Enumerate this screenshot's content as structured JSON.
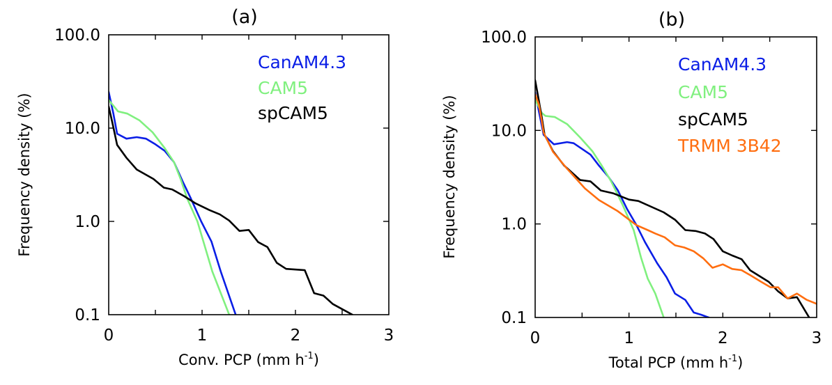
{
  "chart_data": [
    {
      "type": "line",
      "id": "a",
      "title": "(a)",
      "xlabel": "Conv. PCP (mm h",
      "xlabel_sup": "-1",
      "xlabel_end": ")",
      "ylabel": "Frequency  density  (%)",
      "xlim": [
        0,
        3
      ],
      "ylim": [
        0.1,
        100
      ],
      "yscale": "log",
      "xticks": [
        0,
        1,
        2,
        3
      ],
      "xtick_labels": [
        "0",
        "1",
        "2",
        "3"
      ],
      "xminor": [
        0.5,
        1.5,
        2.5
      ],
      "yticks": [
        0.1,
        1,
        10,
        100
      ],
      "ytick_labels": [
        "0.1",
        "1.0",
        "10.0",
        "100.0"
      ],
      "grid": false,
      "legend_position": "top-right",
      "series": [
        {
          "name": "CanAM4.3",
          "color": "#0a1ee6",
          "x": [
            0,
            0.05,
            0.09,
            0.19,
            0.3,
            0.4,
            0.5,
            0.6,
            0.7,
            0.79,
            0.88,
            0.99,
            1.1,
            1.2,
            1.36
          ],
          "y": [
            24.4,
            14.3,
            8.7,
            7.7,
            8.0,
            7.7,
            6.7,
            5.7,
            4.3,
            2.7,
            1.76,
            1.0,
            0.61,
            0.29,
            0.1
          ]
        },
        {
          "name": "CAM5",
          "color": "#80f07f",
          "x": [
            0,
            0.1,
            0.2,
            0.33,
            0.47,
            0.6,
            0.7,
            0.77,
            0.84,
            0.95,
            1.11,
            1.29
          ],
          "y": [
            20,
            15.1,
            14.3,
            12.1,
            9.0,
            6.1,
            4.3,
            2.85,
            1.76,
            1.0,
            0.29,
            0.1
          ]
        },
        {
          "name": "spCAM5",
          "color": "#000000",
          "x": [
            0,
            0.04,
            0.09,
            0.19,
            0.3,
            0.48,
            0.59,
            0.68,
            0.81,
            0.93,
            1.08,
            1.19,
            1.29,
            1.4,
            1.5,
            1.6,
            1.7,
            1.8,
            1.9,
            2.1,
            2.2,
            2.3,
            2.4,
            2.61
          ],
          "y": [
            17,
            11.3,
            6.6,
            4.8,
            3.6,
            2.85,
            2.3,
            2.2,
            1.86,
            1.56,
            1.32,
            1.19,
            1.02,
            0.79,
            0.81,
            0.6,
            0.53,
            0.36,
            0.31,
            0.3,
            0.17,
            0.16,
            0.13,
            0.1
          ]
        }
      ]
    },
    {
      "type": "line",
      "id": "b",
      "title": "(b)",
      "xlabel": "Total PCP (mm h",
      "xlabel_sup": "-1",
      "xlabel_end": ")",
      "ylabel": "Frequency  density  (%)",
      "xlim": [
        0,
        3
      ],
      "ylim": [
        0.1,
        100
      ],
      "yscale": "log",
      "xticks": [
        0,
        1,
        2,
        3
      ],
      "xtick_labels": [
        "0",
        "1",
        "2",
        "3"
      ],
      "xminor": [
        0.5,
        1.5,
        2.5
      ],
      "yticks": [
        0.1,
        1,
        10,
        100
      ],
      "ytick_labels": [
        "0.1",
        "1.0",
        "10.0",
        "100.0"
      ],
      "grid": false,
      "legend_position": "top-right",
      "series": [
        {
          "name": "CanAM4.3",
          "color": "#0a1ee6",
          "x": [
            0,
            0.09,
            0.2,
            0.34,
            0.41,
            0.59,
            0.68,
            0.78,
            0.88,
            0.98,
            1.08,
            1.17,
            1.3,
            1.4,
            1.49,
            1.6,
            1.69,
            1.77,
            1.85
          ],
          "y": [
            25.4,
            9.0,
            7.1,
            7.5,
            7.3,
            5.5,
            4.2,
            3.2,
            2.3,
            1.44,
            0.97,
            0.64,
            0.38,
            0.27,
            0.18,
            0.154,
            0.113,
            0.107,
            0.1
          ]
        },
        {
          "name": "CAM5",
          "color": "#80f07f",
          "x": [
            0,
            0.07,
            0.11,
            0.21,
            0.34,
            0.48,
            0.61,
            0.71,
            0.81,
            0.93,
            1.05,
            1.13,
            1.2,
            1.28,
            1.37
          ],
          "y": [
            21.3,
            15.4,
            14.3,
            13.9,
            11.7,
            8.4,
            6.0,
            4.2,
            2.85,
            1.62,
            0.86,
            0.43,
            0.26,
            0.18,
            0.1
          ]
        },
        {
          "name": "spCAM5",
          "color": "#000000",
          "x": [
            0,
            0.03,
            0.07,
            0.1,
            0.19,
            0.31,
            0.48,
            0.59,
            0.7,
            0.83,
            1.0,
            1.1,
            1.37,
            1.49,
            1.6,
            1.71,
            1.81,
            1.9,
            2.0,
            2.1,
            2.2,
            2.29,
            2.49,
            2.59,
            2.69,
            2.79,
            2.92
          ],
          "y": [
            34.4,
            23.6,
            14,
            9.0,
            6.0,
            4.2,
            2.95,
            2.85,
            2.28,
            2.13,
            1.82,
            1.76,
            1.33,
            1.11,
            0.86,
            0.84,
            0.79,
            0.69,
            0.51,
            0.46,
            0.42,
            0.32,
            0.24,
            0.19,
            0.16,
            0.165,
            0.1
          ]
        },
        {
          "name": "TRMM 3B42",
          "color": "#ff6e10",
          "x": [
            0,
            0.04,
            0.07,
            0.09,
            0.19,
            0.34,
            0.53,
            0.68,
            0.88,
            1.08,
            1.2,
            1.28,
            1.38,
            1.49,
            1.59,
            1.69,
            1.79,
            1.89,
            2.0,
            2.1,
            2.2,
            2.3,
            2.41,
            2.51,
            2.59,
            2.69,
            2.79,
            2.89,
            3.0
          ],
          "y": [
            24.4,
            18.9,
            12.7,
            9.5,
            5.9,
            3.9,
            2.4,
            1.8,
            1.37,
            0.97,
            0.86,
            0.79,
            0.72,
            0.59,
            0.56,
            0.51,
            0.43,
            0.34,
            0.37,
            0.33,
            0.32,
            0.28,
            0.24,
            0.21,
            0.21,
            0.16,
            0.18,
            0.155,
            0.14
          ]
        }
      ]
    }
  ]
}
